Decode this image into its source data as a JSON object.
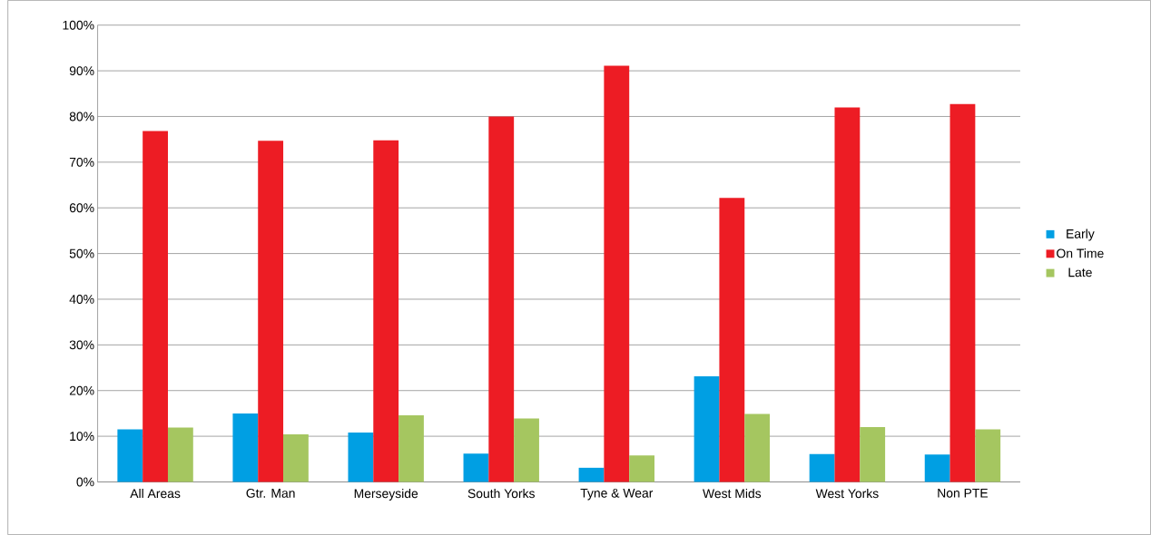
{
  "chart_data": {
    "type": "bar",
    "categories": [
      "All Areas",
      "Gtr. Man",
      "Merseyside",
      "South Yorks",
      "Tyne & Wear",
      "West Mids",
      "West Yorks",
      "Non PTE"
    ],
    "series": [
      {
        "name": "Early",
        "color": "#009fe3",
        "values": [
          11.5,
          15.0,
          10.8,
          6.2,
          3.1,
          23.1,
          6.1,
          6.0
        ]
      },
      {
        "name": "On Time",
        "color": "#ed1c24",
        "values": [
          76.8,
          74.7,
          74.8,
          80.0,
          91.1,
          62.2,
          82.0,
          82.7
        ]
      },
      {
        "name": "Late",
        "color": "#a5c660",
        "values": [
          11.9,
          10.4,
          14.6,
          13.9,
          5.8,
          14.9,
          12.0,
          11.5
        ]
      }
    ],
    "ylim": [
      0,
      100
    ],
    "yticks": [
      {
        "value": 0,
        "label": "0%"
      },
      {
        "value": 10,
        "label": "10%"
      },
      {
        "value": 20,
        "label": "20%"
      },
      {
        "value": 30,
        "label": "30%"
      },
      {
        "value": 40,
        "label": "40%"
      },
      {
        "value": 50,
        "label": "50%"
      },
      {
        "value": 60,
        "label": "60%"
      },
      {
        "value": 70,
        "label": "70%"
      },
      {
        "value": 80,
        "label": "80%"
      },
      {
        "value": 90,
        "label": "90%"
      },
      {
        "value": 100,
        "label": "100%"
      }
    ],
    "grid": "y",
    "legend": "right"
  }
}
